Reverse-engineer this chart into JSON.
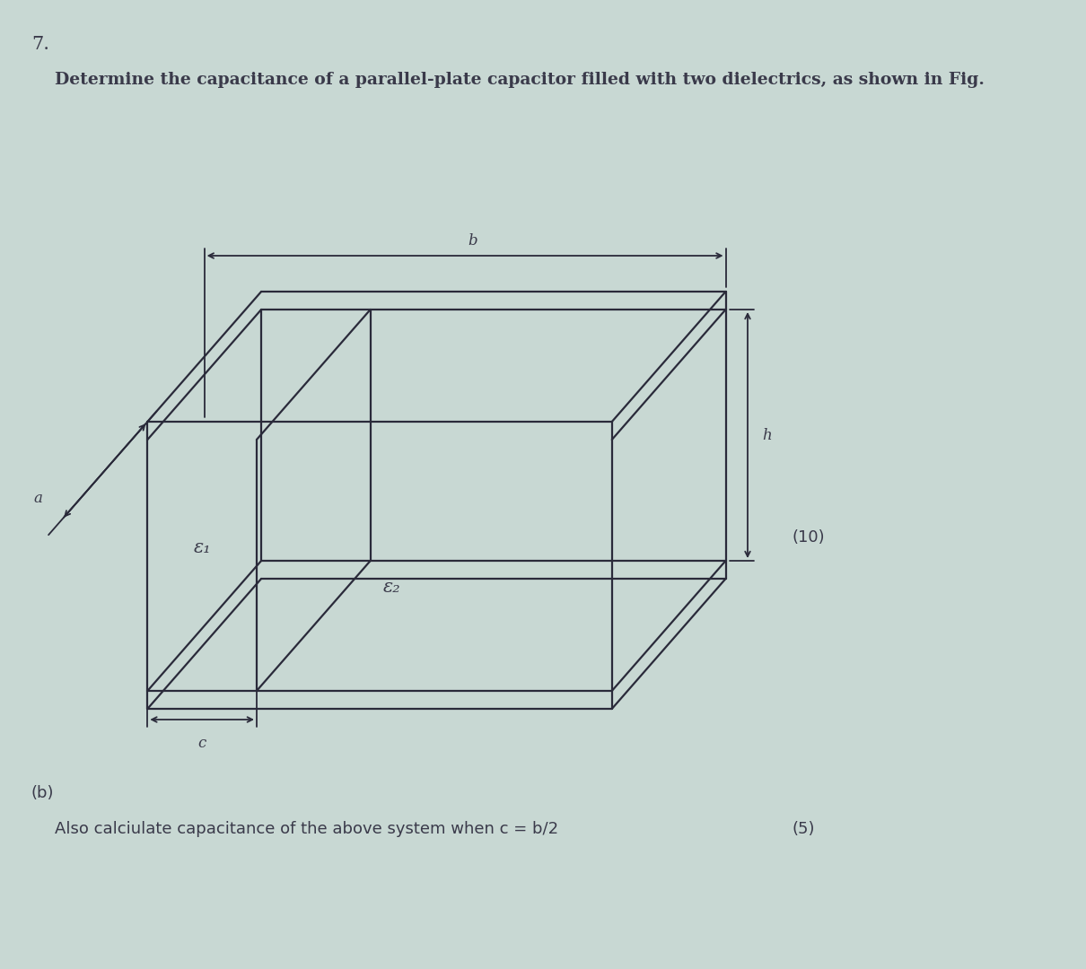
{
  "bg_color": "#c8d8d3",
  "title_number": "7.",
  "question_text": "Determine the capacitance of a parallel-plate capacitor filled with two dielectrics, as shown in Fig.",
  "part_b_label": "(b)",
  "part_b_text": "Also calciulate capacitance of the above system when c = b/2",
  "marks_a": "(10)",
  "marks_b": "(5)",
  "line_color": "#2a2a3a",
  "text_color": "#3a3a4a",
  "line_width": 1.6,
  "label_a": "a",
  "label_b": "b",
  "label_c": "c",
  "label_h": "h",
  "label_e1": "ε₁",
  "label_e2": "ε₂"
}
